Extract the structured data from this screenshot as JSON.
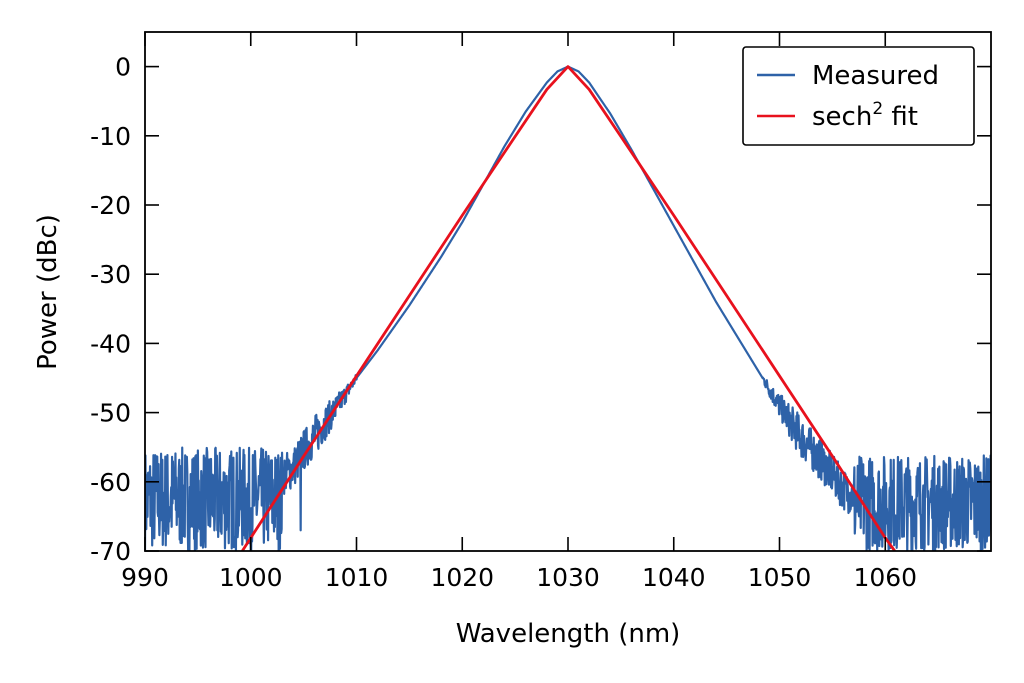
{
  "chart_data": {
    "type": "line",
    "title": "",
    "xlabel": "Wavelength (nm)",
    "ylabel": "Power (dBc)",
    "xlim": [
      990,
      1070
    ],
    "ylim": [
      -70,
      5
    ],
    "x_ticks": [
      990,
      1000,
      1010,
      1020,
      1030,
      1040,
      1050,
      1060
    ],
    "y_ticks": [
      0,
      -10,
      -20,
      -30,
      -40,
      -50,
      -60,
      -70
    ],
    "grid": false,
    "legend_position": "top-right",
    "series": [
      {
        "name": "Measured",
        "color": "#2e62a8",
        "x": [
          990,
          995,
          1000,
          1003,
          1004,
          1005,
          1006,
          1008,
          1010,
          1012,
          1015,
          1018,
          1020,
          1022,
          1024,
          1026,
          1028,
          1029,
          1030,
          1031,
          1032,
          1034,
          1036,
          1038,
          1040,
          1042,
          1044,
          1046,
          1048,
          1050,
          1052,
          1054,
          1055,
          1056,
          1057,
          1060,
          1065,
          1070
        ],
        "y": [
          -62,
          -62,
          -61,
          -59,
          -58,
          -55.5,
          -53.5,
          -49.5,
          -45,
          -41,
          -34.5,
          -27.5,
          -22.5,
          -17,
          -11.5,
          -6.5,
          -2.3,
          -0.7,
          0,
          -0.7,
          -2.3,
          -6.8,
          -12,
          -17.5,
          -23,
          -28.5,
          -34,
          -39,
          -44,
          -49,
          -53.5,
          -57,
          -59,
          -61,
          -62,
          -62,
          -62,
          -62
        ],
        "noise_floor_regions": [
          {
            "x_range": [
              990,
              1003
            ],
            "level_range": [
              -70,
              -55
            ]
          },
          {
            "x_range": [
              1057,
              1070
            ],
            "level_range": [
              -70,
              -56
            ]
          }
        ],
        "dropout_spike": {
          "x": 1004.7,
          "y": -67
        }
      },
      {
        "name": "sech² fit",
        "color": "#e8111d",
        "model": "sech2",
        "center": 1030,
        "fwhm": 6,
        "x": [
          999.2,
          1000,
          1005,
          1010,
          1015,
          1020,
          1025,
          1028,
          1030,
          1032,
          1035,
          1040,
          1045,
          1050,
          1055,
          1060,
          1060.9
        ],
        "y": [
          -70,
          -68.1,
          -56.3,
          -44.7,
          -33.1,
          -21.5,
          -10.1,
          -3.3,
          0,
          -3.3,
          -10.1,
          -21.5,
          -33.1,
          -44.7,
          -56.3,
          -68.1,
          -70
        ]
      }
    ],
    "legend": {
      "measured_label": "Measured",
      "fit_label_base": "sech",
      "fit_label_sup": "2",
      "fit_label_tail": " fit"
    }
  }
}
